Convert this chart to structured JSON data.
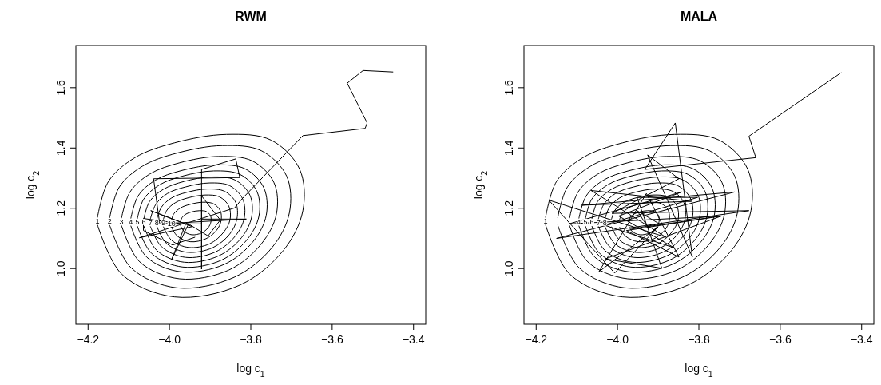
{
  "chart_data": [
    {
      "type": "line",
      "title": "RWM",
      "xlabel": "log c$_{1}$",
      "ylabel": "log c$_{2}$",
      "xlim": [
        -4.23,
        -3.37
      ],
      "ylim": [
        0.815,
        1.74
      ],
      "xticks": [
        {
          "value": -4.2,
          "label": "−4.2"
        },
        {
          "value": -4.0,
          "label": "−4.0"
        },
        {
          "value": -3.8,
          "label": "−3.8"
        },
        {
          "value": -3.6,
          "label": "−3.6"
        },
        {
          "value": -3.4,
          "label": "−3.4"
        }
      ],
      "yticks": [
        {
          "value": 1.0,
          "label": "1.0"
        },
        {
          "value": 1.2,
          "label": "1.2"
        },
        {
          "value": 1.4,
          "label": "1.4"
        },
        {
          "value": 1.6,
          "label": "1.6"
        }
      ],
      "series": [
        {
          "color": "#000000",
          "x": [
            -3.45,
            -3.524,
            -3.563,
            -3.514,
            -3.519,
            -3.672,
            -3.821,
            -3.84,
            -3.963,
            -3.921,
            -3.921,
            -3.837,
            -3.827,
            -4.039,
            -4.024,
            -3.811,
            -3.921,
            -3.921,
            -3.921,
            -3.875,
            -3.905,
            -3.953,
            -3.995,
            -3.96,
            -4.046,
            -3.944,
            -4.074,
            -3.968,
            -4.064,
            -4.064,
            -3.992,
            -3.937
          ],
          "values": [
            1.652,
            1.657,
            1.615,
            1.483,
            1.465,
            1.441,
            1.232,
            1.201,
            1.148,
            1.148,
            1.329,
            1.364,
            1.302,
            1.298,
            1.148,
            1.164,
            1.164,
            0.998,
            1.241,
            1.161,
            1.108,
            1.148,
            1.029,
            1.148,
            1.192,
            1.139,
            1.102,
            1.148,
            1.166,
            1.126,
            1.078,
            1.104
          ]
        },
        {
          "name": "1",
          "color": "#000000",
          "x": [
            -4.177,
            -4.15,
            -4.085,
            -3.988,
            -3.86,
            -3.75,
            -3.68,
            -3.672,
            -3.72,
            -3.827,
            -3.988,
            -4.117,
            -4.177
          ],
          "values": [
            1.169,
            1.289,
            1.368,
            1.417,
            1.445,
            1.426,
            1.33,
            1.192,
            1.06,
            0.945,
            0.906,
            0.981,
            1.145
          ]
        },
        {
          "name": "2",
          "color": "#000000",
          "x": [
            -4.147,
            -4.123,
            -4.066,
            -3.982,
            -3.87,
            -3.774,
            -3.712,
            -3.705,
            -3.747,
            -3.841,
            -3.982,
            -4.094,
            -4.147
          ],
          "values": [
            1.168,
            1.271,
            1.34,
            1.383,
            1.408,
            1.391,
            1.307,
            1.186,
            1.071,
            0.971,
            0.936,
            1.002,
            1.144
          ]
        },
        {
          "name": "3",
          "color": "#000000",
          "x": [
            -4.118,
            -4.097,
            -4.048,
            -3.975,
            -3.879,
            -3.796,
            -3.743,
            -3.737,
            -3.774,
            -3.854,
            -3.975,
            -4.073,
            -4.118
          ],
          "values": [
            1.167,
            1.254,
            1.314,
            1.351,
            1.372,
            1.357,
            1.285,
            1.181,
            1.082,
            0.995,
            0.966,
            1.022,
            1.143
          ]
        },
        {
          "name": "4",
          "color": "#000000",
          "x": [
            -4.095,
            -4.077,
            -4.035,
            -3.971,
            -3.886,
            -3.814,
            -3.768,
            -3.762,
            -3.794,
            -3.865,
            -3.971,
            -4.056,
            -4.095
          ],
          "values": [
            1.166,
            1.241,
            1.293,
            1.325,
            1.344,
            1.331,
            1.268,
            1.177,
            1.09,
            1.014,
            0.989,
            1.038,
            1.142
          ]
        },
        {
          "name": "5",
          "color": "#000000",
          "x": [
            -4.079,
            -4.063,
            -4.024,
            -3.967,
            -3.891,
            -3.826,
            -3.785,
            -3.78,
            -3.809,
            -3.872,
            -3.967,
            -4.043,
            -4.079
          ],
          "values": [
            1.165,
            1.231,
            1.278,
            1.307,
            1.324,
            1.312,
            1.256,
            1.174,
            1.096,
            1.028,
            1.005,
            1.049,
            1.141
          ]
        },
        {
          "name": "6",
          "color": "#000000",
          "x": [
            -4.063,
            -4.049,
            -4.015,
            -3.964,
            -3.897,
            -3.839,
            -3.802,
            -3.798,
            -3.823,
            -3.879,
            -3.964,
            -4.031,
            -4.063
          ],
          "values": [
            1.165,
            1.222,
            1.263,
            1.289,
            1.304,
            1.294,
            1.243,
            1.171,
            1.102,
            1.042,
            1.021,
            1.06,
            1.141
          ]
        },
        {
          "name": "7",
          "color": "#000000",
          "x": [
            -4.047,
            -4.034,
            -4.005,
            -3.96,
            -3.902,
            -3.852,
            -3.82,
            -3.816,
            -3.838,
            -3.887,
            -3.96,
            -4.019,
            -4.047
          ],
          "values": [
            1.164,
            1.212,
            1.249,
            1.271,
            1.284,
            1.275,
            1.231,
            1.168,
            1.108,
            1.055,
            1.037,
            1.072,
            1.14
          ]
        },
        {
          "name": "8",
          "color": "#000000",
          "x": [
            -4.031,
            -4.02,
            -3.995,
            -3.957,
            -3.907,
            -3.864,
            -3.837,
            -3.834,
            -3.852,
            -3.894,
            -3.957,
            -4.007,
            -4.031
          ],
          "values": [
            1.164,
            1.203,
            1.234,
            1.253,
            1.264,
            1.256,
            1.219,
            1.165,
            1.114,
            1.069,
            1.054,
            1.083,
            1.14
          ]
        },
        {
          "name": "9",
          "color": "#000000",
          "x": [
            -4.015,
            -4.006,
            -3.985,
            -3.953,
            -3.912,
            -3.877,
            -3.854,
            -3.851,
            -3.867,
            -3.901,
            -3.953,
            -3.995,
            -4.015
          ],
          "values": [
            1.163,
            1.194,
            1.219,
            1.235,
            1.244,
            1.238,
            1.207,
            1.162,
            1.12,
            1.082,
            1.07,
            1.094,
            1.139
          ]
        },
        {
          "name": "10",
          "color": "#000000",
          "x": [
            -3.995,
            -3.989,
            -3.973,
            -3.949,
            -3.918,
            -3.892,
            -3.875,
            -3.873,
            -3.884,
            -3.91,
            -3.949,
            -3.981,
            -3.995
          ],
          "values": [
            1.162,
            1.182,
            1.201,
            1.213,
            1.22,
            1.215,
            1.192,
            1.159,
            1.127,
            1.099,
            1.089,
            1.108,
            1.138
          ]
        },
        {
          "color": "#000000",
          "x": [
            -3.973,
            -3.969,
            -3.959,
            -3.945,
            -3.926,
            -3.909,
            -3.899,
            -3.898,
            -3.905,
            -3.921,
            -3.945,
            -3.964,
            -3.973
          ],
          "values": [
            1.155,
            1.169,
            1.181,
            1.188,
            1.192,
            1.189,
            1.175,
            1.155,
            1.135,
            1.118,
            1.112,
            1.123,
            1.143
          ]
        }
      ]
    },
    {
      "type": "line",
      "title": "MALA",
      "xlabel": "log c$_{1}$",
      "ylabel": "log c$_{2}$",
      "xlim": [
        -4.23,
        -3.37
      ],
      "ylim": [
        0.815,
        1.74
      ],
      "xticks": [
        {
          "value": -4.2,
          "label": "−4.2"
        },
        {
          "value": -4.0,
          "label": "−4.0"
        },
        {
          "value": -3.8,
          "label": "−3.8"
        },
        {
          "value": -3.6,
          "label": "−3.6"
        },
        {
          "value": -3.4,
          "label": "−3.4"
        }
      ],
      "yticks": [
        {
          "value": 1.0,
          "label": "1.0"
        },
        {
          "value": 1.2,
          "label": "1.2"
        },
        {
          "value": 1.4,
          "label": "1.4"
        },
        {
          "value": 1.6,
          "label": "1.6"
        }
      ],
      "series": [
        {
          "color": "#000000",
          "x": [
            -3.45,
            -3.677,
            -3.66,
            -3.933,
            -3.858,
            -3.816,
            -3.926,
            -3.849,
            -4.014,
            -3.677,
            -4.15,
            -3.712,
            -4.088,
            -3.819,
            -4.065,
            -3.881,
            -4.169,
            -4.007,
            -3.9,
            -4.046,
            -3.929,
            -3.849,
            -3.978,
            -3.745,
            -4.03,
            -3.891,
            -3.952,
            -3.803,
            -4.033,
            -3.861,
            -3.997,
            -3.842,
            -4.12,
            -3.748,
            -3.926,
            -3.952,
            -3.897,
            -3.968
          ],
          "values": [
            1.65,
            1.439,
            1.368,
            1.329,
            1.483,
            1.038,
            1.377,
            1.298,
            1.183,
            1.192,
            1.1,
            1.254,
            1.21,
            1.223,
            1.259,
            1.104,
            1.227,
            0.985,
            1.139,
            0.989,
            1.249,
            1.038,
            1.126,
            1.174,
            1.032,
            1.001,
            1.236,
            1.236,
            1.144,
            1.069,
            1.174,
            1.254,
            1.148,
            1.174,
            1.139,
            1.192,
            1.148,
            1.13
          ]
        },
        {
          "name": "1",
          "color": "#000000",
          "x": [
            -4.177,
            -4.15,
            -4.085,
            -3.988,
            -3.86,
            -3.75,
            -3.68,
            -3.672,
            -3.72,
            -3.827,
            -3.988,
            -4.117,
            -4.177
          ],
          "values": [
            1.169,
            1.289,
            1.368,
            1.417,
            1.445,
            1.426,
            1.33,
            1.192,
            1.06,
            0.945,
            0.906,
            0.981,
            1.145
          ]
        },
        {
          "color": "#000000",
          "x": [
            -4.147,
            -4.123,
            -4.066,
            -3.982,
            -3.87,
            -3.774,
            -3.712,
            -3.705,
            -3.747,
            -3.841,
            -3.982,
            -4.094,
            -4.147
          ],
          "values": [
            1.168,
            1.271,
            1.34,
            1.383,
            1.408,
            1.391,
            1.307,
            1.186,
            1.071,
            0.971,
            0.936,
            1.002,
            1.144
          ]
        },
        {
          "color": "#000000",
          "x": [
            -4.118,
            -4.097,
            -4.048,
            -3.975,
            -3.879,
            -3.796,
            -3.743,
            -3.737,
            -3.774,
            -3.854,
            -3.975,
            -4.073,
            -4.118
          ],
          "values": [
            1.167,
            1.254,
            1.314,
            1.351,
            1.372,
            1.357,
            1.285,
            1.181,
            1.082,
            0.995,
            0.966,
            1.022,
            1.143
          ]
        },
        {
          "name": "4",
          "color": "#000000",
          "x": [
            -4.095,
            -4.077,
            -4.035,
            -3.971,
            -3.886,
            -3.814,
            -3.768,
            -3.762,
            -3.794,
            -3.865,
            -3.971,
            -4.056,
            -4.095
          ],
          "values": [
            1.166,
            1.241,
            1.293,
            1.325,
            1.344,
            1.331,
            1.268,
            1.177,
            1.09,
            1.014,
            0.989,
            1.038,
            1.142
          ]
        },
        {
          "name": "5",
          "color": "#000000",
          "x": [
            -4.079,
            -4.063,
            -4.024,
            -3.967,
            -3.891,
            -3.826,
            -3.785,
            -3.78,
            -3.809,
            -3.872,
            -3.967,
            -4.043,
            -4.079
          ],
          "values": [
            1.165,
            1.231,
            1.278,
            1.307,
            1.324,
            1.312,
            1.256,
            1.174,
            1.096,
            1.028,
            1.005,
            1.049,
            1.141
          ]
        },
        {
          "name": "6",
          "color": "#000000",
          "x": [
            -4.063,
            -4.049,
            -4.015,
            -3.964,
            -3.897,
            -3.839,
            -3.802,
            -3.798,
            -3.823,
            -3.879,
            -3.964,
            -4.031,
            -4.063
          ],
          "values": [
            1.165,
            1.222,
            1.263,
            1.289,
            1.304,
            1.294,
            1.243,
            1.171,
            1.102,
            1.042,
            1.021,
            1.06,
            1.141
          ]
        },
        {
          "name": "7",
          "color": "#000000",
          "x": [
            -4.047,
            -4.034,
            -4.005,
            -3.96,
            -3.902,
            -3.852,
            -3.82,
            -3.816,
            -3.838,
            -3.887,
            -3.96,
            -4.019,
            -4.047
          ],
          "values": [
            1.164,
            1.212,
            1.249,
            1.271,
            1.284,
            1.275,
            1.231,
            1.168,
            1.108,
            1.055,
            1.037,
            1.072,
            1.14
          ]
        },
        {
          "name": "8",
          "color": "#000000",
          "x": [
            -4.031,
            -4.02,
            -3.995,
            -3.957,
            -3.907,
            -3.864,
            -3.837,
            -3.834,
            -3.852,
            -3.894,
            -3.957,
            -4.007,
            -4.031
          ],
          "values": [
            1.164,
            1.203,
            1.234,
            1.253,
            1.264,
            1.256,
            1.219,
            1.165,
            1.114,
            1.069,
            1.054,
            1.083,
            1.14
          ]
        },
        {
          "color": "#000000",
          "x": [
            -4.015,
            -4.006,
            -3.985,
            -3.953,
            -3.912,
            -3.877,
            -3.854,
            -3.851,
            -3.867,
            -3.901,
            -3.953,
            -3.995,
            -4.015
          ],
          "values": [
            1.163,
            1.194,
            1.219,
            1.235,
            1.244,
            1.238,
            1.207,
            1.162,
            1.12,
            1.082,
            1.07,
            1.094,
            1.139
          ]
        },
        {
          "color": "#000000",
          "x": [
            -3.995,
            -3.989,
            -3.973,
            -3.949,
            -3.918,
            -3.892,
            -3.875,
            -3.873,
            -3.884,
            -3.91,
            -3.949,
            -3.981,
            -3.995
          ],
          "values": [
            1.162,
            1.182,
            1.201,
            1.213,
            1.22,
            1.215,
            1.192,
            1.159,
            1.127,
            1.099,
            1.089,
            1.108,
            1.138
          ]
        },
        {
          "color": "#000000",
          "x": [
            -3.973,
            -3.969,
            -3.959,
            -3.945,
            -3.926,
            -3.909,
            -3.899,
            -3.898,
            -3.905,
            -3.921,
            -3.945,
            -3.964,
            -3.973
          ],
          "values": [
            1.155,
            1.169,
            1.181,
            1.188,
            1.192,
            1.189,
            1.175,
            1.155,
            1.135,
            1.118,
            1.112,
            1.123,
            1.143
          ]
        }
      ]
    }
  ]
}
